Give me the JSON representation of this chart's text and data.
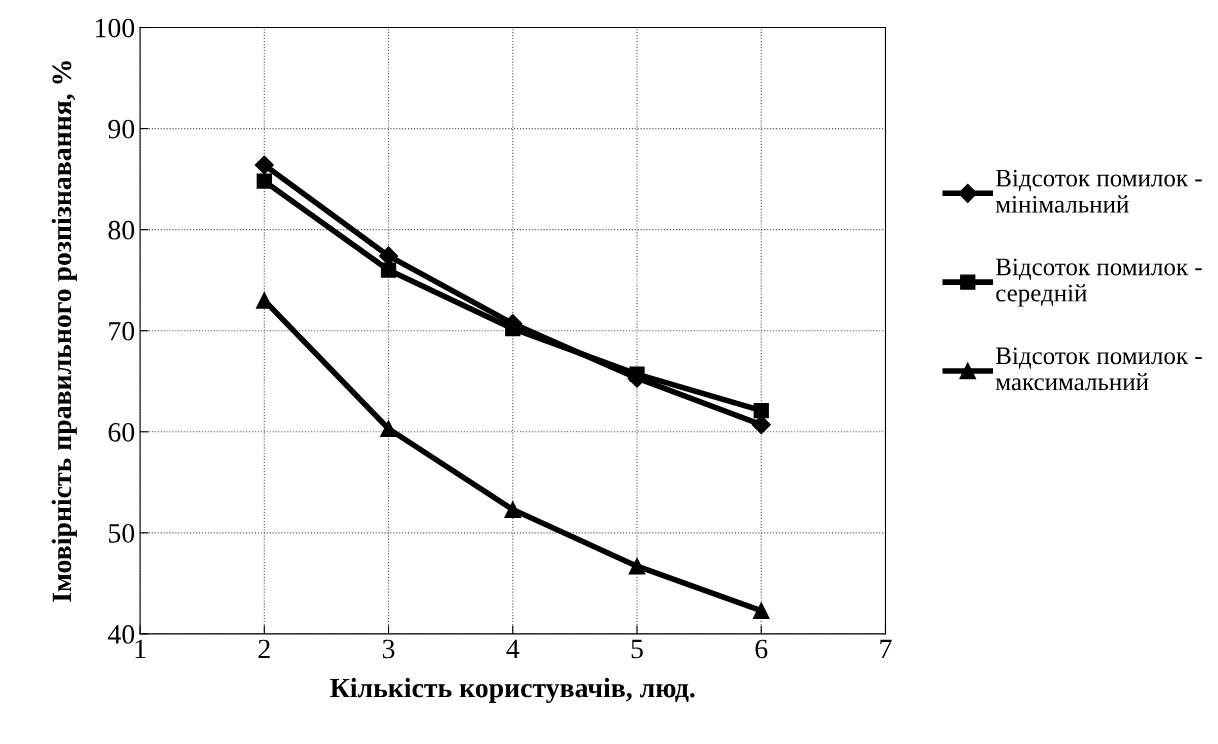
{
  "chart_data": {
    "type": "line",
    "xlabel": "Кількість користувачів, люд.",
    "ylabel": "Імовірність правильного розпізнавання, %",
    "x": [
      2,
      3,
      4,
      5,
      6
    ],
    "series": [
      {
        "name": "Відсоток помилок - мінімальний",
        "color": "#000000",
        "marker": "diamond",
        "values": [
          86.4,
          77.4,
          70.7,
          65.3,
          60.7
        ]
      },
      {
        "name": "Відсоток помилок - середній",
        "color": "#000000",
        "marker": "square",
        "values": [
          84.8,
          76.0,
          70.2,
          65.7,
          62.1
        ]
      },
      {
        "name": "Відсоток помилок - максимальний",
        "color": "#000000",
        "marker": "triangle",
        "values": [
          73.0,
          60.3,
          52.3,
          46.7,
          42.3
        ]
      }
    ],
    "xlim": [
      1,
      7
    ],
    "xticks": [
      1,
      2,
      3,
      4,
      5,
      6,
      7
    ],
    "ylim": [
      40,
      100
    ],
    "yticks": [
      40,
      50,
      60,
      70,
      80,
      90,
      100
    ],
    "grid": true,
    "legend": "right",
    "line_style": "solid"
  }
}
